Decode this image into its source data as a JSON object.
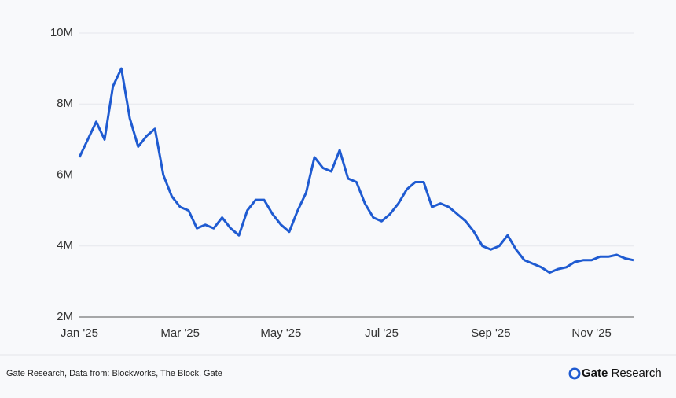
{
  "chart_data": {
    "type": "line",
    "categories": [
      "Jan '25",
      null,
      null,
      null,
      null,
      null,
      null,
      null,
      null,
      null,
      null,
      null,
      "Mar '25",
      null,
      null,
      null,
      null,
      null,
      null,
      null,
      null,
      null,
      null,
      null,
      "May '25",
      null,
      null,
      null,
      null,
      null,
      null,
      null,
      null,
      null,
      null,
      null,
      "Jul '25",
      null,
      null,
      null,
      null,
      null,
      null,
      null,
      null,
      null,
      null,
      null,
      null,
      "Sep '25",
      null,
      null,
      null,
      null,
      null,
      null,
      null,
      null,
      null,
      null,
      null,
      "Nov '25",
      null,
      null,
      null,
      null,
      null
    ],
    "series": [
      {
        "color": "#1f5bd1",
        "values": [
          6.5,
          7.0,
          7.5,
          7.0,
          8.5,
          9.0,
          7.6,
          6.8,
          7.1,
          7.3,
          6.0,
          5.4,
          5.1,
          5.0,
          4.5,
          4.6,
          4.5,
          4.8,
          4.5,
          4.3,
          5.0,
          5.3,
          5.3,
          4.9,
          4.6,
          4.4,
          5.0,
          5.5,
          6.5,
          6.2,
          6.1,
          6.7,
          5.9,
          5.8,
          5.2,
          4.8,
          4.7,
          4.9,
          5.2,
          5.6,
          5.8,
          5.8,
          5.1,
          5.2,
          5.1,
          4.9,
          4.7,
          4.4,
          4.0,
          3.9,
          4.0,
          4.3,
          3.9,
          3.6,
          3.5,
          3.4,
          3.25,
          3.35,
          3.4,
          3.55,
          3.6,
          3.6,
          3.7,
          3.7,
          3.75,
          3.65,
          3.6
        ]
      }
    ],
    "ylim": [
      2,
      10
    ],
    "yticks": [
      {
        "value": 2,
        "label": "2M"
      },
      {
        "value": 4,
        "label": "4M"
      },
      {
        "value": 6,
        "label": "6M"
      },
      {
        "value": 8,
        "label": "8M"
      },
      {
        "value": 10,
        "label": "10M"
      }
    ],
    "grid": true
  },
  "source": "Gate Research, Data from: Blockworks, The Block, Gate",
  "logo": {
    "brand": "Gate",
    "suffix": "Research"
  }
}
